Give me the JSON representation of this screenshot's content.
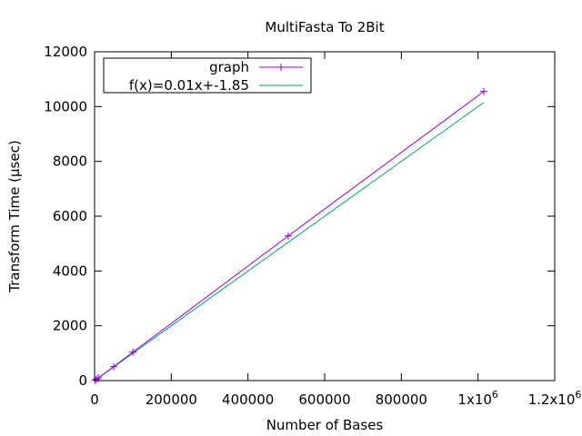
{
  "chart_data": {
    "type": "line",
    "title": "MultiFasta To 2Bit",
    "xlabel": "Number of Bases",
    "ylabel": "Transform Time (µsec)",
    "xlim": [
      0,
      1200000
    ],
    "ylim": [
      0,
      12000
    ],
    "x_ticks": [
      0,
      200000,
      400000,
      600000,
      800000,
      1000000,
      1200000
    ],
    "x_tick_labels": [
      "0",
      "200000",
      "400000",
      "600000",
      "800000",
      "1x10",
      "1.2x10"
    ],
    "x_tick_exponents": [
      "",
      "",
      "",
      "",
      "",
      "6",
      "6"
    ],
    "y_ticks": [
      0,
      2000,
      4000,
      6000,
      8000,
      10000,
      12000
    ],
    "y_tick_labels": [
      "0",
      "2000",
      "4000",
      "6000",
      "8000",
      "10000",
      "12000"
    ],
    "grid": false,
    "legend_position": "top-left",
    "series": [
      {
        "name": "graph",
        "color": "#9400d3",
        "marker": "plus",
        "x": [
          1000,
          5000,
          10000,
          50000,
          100000,
          505000,
          1015000
        ],
        "y": [
          10,
          50,
          100,
          510,
          1040,
          5280,
          10550
        ]
      },
      {
        "name": "f(x)=0.01x+-1.85",
        "color": "#009e73",
        "type": "fit",
        "slope": 0.01,
        "intercept": -1.85,
        "x_range": [
          0,
          1015000
        ]
      }
    ]
  }
}
